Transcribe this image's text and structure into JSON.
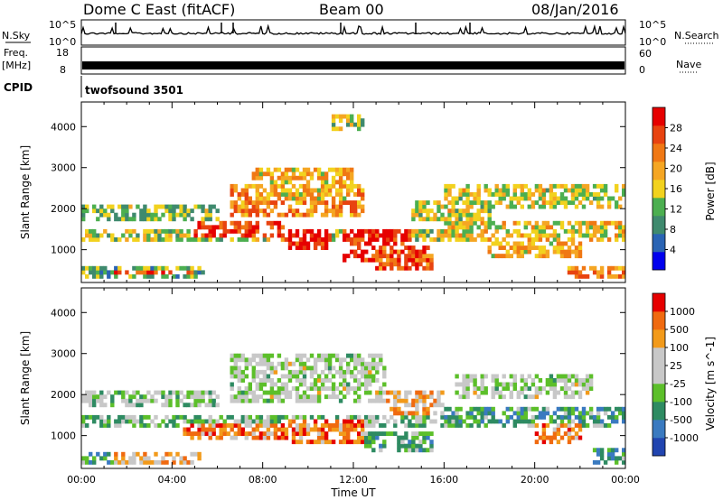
{
  "header": {
    "station": "Dome C East (fitACF)",
    "beam": "Beam 00",
    "date": "08/Jan/2016"
  },
  "strips": {
    "nsky_label": "N.Sky",
    "nsearch_label": "N.Search",
    "noise_left_ticks": [
      "10^5",
      "10^0"
    ],
    "noise_right_ticks": [
      "10^5",
      "10^0"
    ],
    "freq_label": "Freq.",
    "freq_unit": "[MHz]",
    "freq_ticks": [
      "18",
      "8"
    ],
    "nave_label": "Nave",
    "nave_ticks": [
      "60",
      "0"
    ],
    "cpid_label": "CPID",
    "cpid_value": "twofsound 3501"
  },
  "colors": {
    "power_scale": [
      "#0000ee",
      "#2a64b4",
      "#3f8a6e",
      "#4caf50",
      "#f2d21e",
      "#f5a623",
      "#f07814",
      "#e84310",
      "#e60000"
    ],
    "velocity_scale": [
      "#2145b0",
      "#3a7ac0",
      "#2e8b62",
      "#5cbf2a",
      "#c8c8c8",
      "#c8c8c8",
      "#f29a1a",
      "#f06a10",
      "#e60000"
    ]
  },
  "chart_data": [
    {
      "type": "heatmap",
      "title": "",
      "xlabel": "",
      "ylabel": "Slant Range [km]",
      "x_ticks": [
        "00:00",
        "04:00",
        "08:00",
        "12:00",
        "16:00",
        "20:00",
        "00:00"
      ],
      "y_ticks": [
        1000,
        2000,
        3000,
        4000
      ],
      "ylim": [
        200,
        4600
      ],
      "colorbar": {
        "label": "Power [dB]",
        "ticks": [
          4,
          8,
          12,
          16,
          20,
          24,
          28
        ]
      },
      "regions": [
        {
          "x": [
            0.0,
            24.0
          ],
          "y": [
            1200,
            1500
          ],
          "level": 0.45
        },
        {
          "x": [
            0.0,
            5.5
          ],
          "y": [
            300,
            550
          ],
          "level": 0.35
        },
        {
          "x": [
            1.5,
            5.0
          ],
          "y": [
            420,
            520
          ],
          "level": 0.85
        },
        {
          "x": [
            0.0,
            6.0
          ],
          "y": [
            1700,
            2100
          ],
          "level": 0.4
        },
        {
          "x": [
            5.0,
            9.0
          ],
          "y": [
            1300,
            1700
          ],
          "level": 0.85
        },
        {
          "x": [
            6.5,
            12.5
          ],
          "y": [
            1800,
            2600
          ],
          "level": 0.7
        },
        {
          "x": [
            7.5,
            12.0
          ],
          "y": [
            2200,
            3000
          ],
          "level": 0.6
        },
        {
          "x": [
            9.0,
            11.0
          ],
          "y": [
            1000,
            1500
          ],
          "level": 0.9
        },
        {
          "x": [
            11.5,
            14.5
          ],
          "y": [
            700,
            1500
          ],
          "level": 0.9
        },
        {
          "x": [
            13.0,
            15.5
          ],
          "y": [
            500,
            1100
          ],
          "level": 0.8
        },
        {
          "x": [
            14.5,
            18.0
          ],
          "y": [
            1700,
            2200
          ],
          "level": 0.5
        },
        {
          "x": [
            16.0,
            24.0
          ],
          "y": [
            1200,
            1700
          ],
          "level": 0.55
        },
        {
          "x": [
            16.0,
            24.0
          ],
          "y": [
            2000,
            2600
          ],
          "level": 0.5
        },
        {
          "x": [
            18.0,
            22.0
          ],
          "y": [
            800,
            1200
          ],
          "level": 0.6
        },
        {
          "x": [
            21.5,
            24.0
          ],
          "y": [
            300,
            600
          ],
          "level": 0.7
        },
        {
          "x": [
            11.0,
            12.5
          ],
          "y": [
            3900,
            4300
          ],
          "level": 0.45
        }
      ]
    },
    {
      "type": "heatmap",
      "title": "",
      "xlabel": "Time UT",
      "ylabel": "Slant Range [km]",
      "x_ticks": [
        "00:00",
        "04:00",
        "08:00",
        "12:00",
        "16:00",
        "20:00",
        "00:00"
      ],
      "y_ticks": [
        1000,
        2000,
        3000,
        4000
      ],
      "ylim": [
        200,
        4600
      ],
      "colorbar": {
        "label": "Velocity [m s^-1]",
        "ticks": [
          1000,
          500,
          100,
          25,
          -25,
          -100,
          -500,
          -1000
        ]
      },
      "regions": [
        {
          "x": [
            0.0,
            24.0
          ],
          "y": [
            1200,
            1500
          ],
          "level": 0.4
        },
        {
          "x": [
            0.0,
            2.5
          ],
          "y": [
            300,
            550
          ],
          "level": 0.3
        },
        {
          "x": [
            1.5,
            5.5
          ],
          "y": [
            350,
            550
          ],
          "level": 0.7
        },
        {
          "x": [
            0.0,
            6.0
          ],
          "y": [
            1700,
            2100
          ],
          "level": 0.45
        },
        {
          "x": [
            4.5,
            9.0
          ],
          "y": [
            900,
            1300
          ],
          "level": 0.8
        },
        {
          "x": [
            6.5,
            13.5
          ],
          "y": [
            1800,
            3000
          ],
          "level": 0.5
        },
        {
          "x": [
            9.0,
            12.5
          ],
          "y": [
            800,
            1400
          ],
          "level": 0.8
        },
        {
          "x": [
            12.5,
            15.5
          ],
          "y": [
            600,
            1100
          ],
          "level": 0.35
        },
        {
          "x": [
            13.5,
            16.0
          ],
          "y": [
            1500,
            2100
          ],
          "level": 0.7
        },
        {
          "x": [
            16.0,
            24.0
          ],
          "y": [
            1300,
            1700
          ],
          "level": 0.3
        },
        {
          "x": [
            16.5,
            22.5
          ],
          "y": [
            1900,
            2500
          ],
          "level": 0.5
        },
        {
          "x": [
            20.0,
            22.0
          ],
          "y": [
            800,
            1300
          ],
          "level": 0.75
        },
        {
          "x": [
            22.5,
            24.0
          ],
          "y": [
            300,
            700
          ],
          "level": 0.3
        }
      ]
    }
  ]
}
